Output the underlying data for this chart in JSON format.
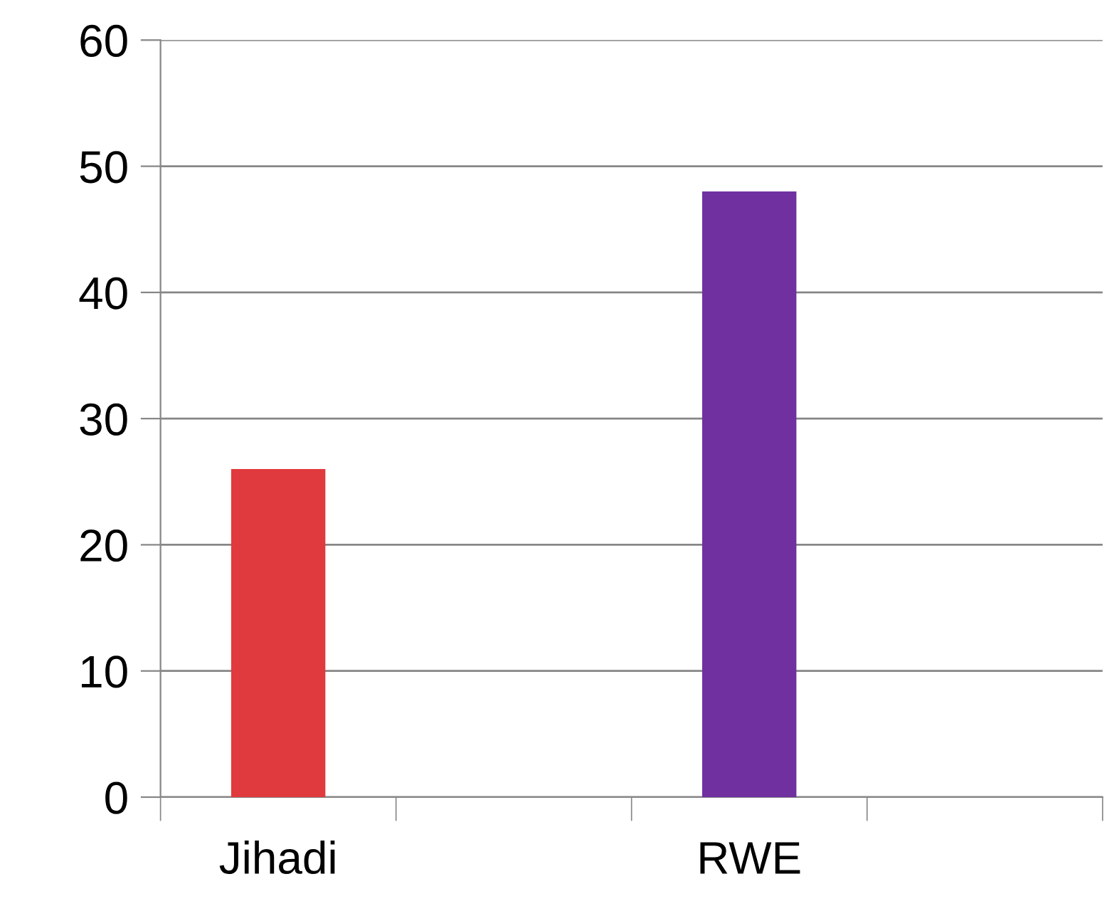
{
  "chart_data": {
    "type": "bar",
    "categories": [
      "Jihadi",
      null,
      "RWE",
      null
    ],
    "values": [
      26,
      null,
      48,
      null
    ],
    "colors": [
      "#e03a3e",
      "#e03a3e",
      "#7030a0",
      "#7030a0"
    ],
    "ylim": [
      0,
      60
    ],
    "yticks": [
      0,
      10,
      20,
      30,
      40,
      50,
      60
    ],
    "grid": "y",
    "legend": false
  }
}
